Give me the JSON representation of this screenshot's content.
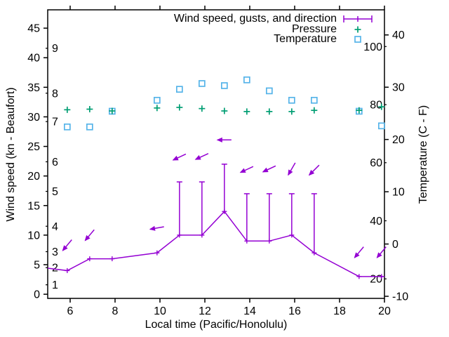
{
  "chart_data": {
    "type": "line",
    "xlabel": "Local time (Pacific/Honolulu)",
    "ylabel_left": "Wind speed (kn - Beaufort)",
    "ylabel_right": "Temperature (C - F)",
    "x_range": [
      5,
      20
    ],
    "x_ticks": [
      6,
      8,
      10,
      12,
      14,
      16,
      18,
      20
    ],
    "y_left_range": [
      -0.7,
      48.1
    ],
    "y_left_ticks": [
      0,
      5,
      10,
      15,
      20,
      25,
      30,
      35,
      40,
      45
    ],
    "beaufort_scale_labels": [
      {
        "label": "1",
        "kn": 1.6
      },
      {
        "label": "2",
        "kn": 4.5
      },
      {
        "label": "3",
        "kn": 7.2
      },
      {
        "label": "4",
        "kn": 11.5
      },
      {
        "label": "5",
        "kn": 17.4
      },
      {
        "label": "6",
        "kn": 22.4
      },
      {
        "label": "7",
        "kn": 29.2
      },
      {
        "label": "8",
        "kn": 34.0
      },
      {
        "label": "9",
        "kn": 41.6
      }
    ],
    "y_right_range_c": [
      -10.4,
      44.8
    ],
    "y_right_ticks_c": [
      -10,
      0,
      10,
      20,
      30,
      40
    ],
    "fahrenheit_scale_labels": [
      20,
      40,
      60,
      80,
      100
    ],
    "legend": [
      {
        "label": "Wind speed, gusts, and direction",
        "marker": "errorbar-line",
        "color": "#9400d3"
      },
      {
        "label": "Pressure",
        "marker": "plus",
        "color": "#009e73"
      },
      {
        "label": "Temperature",
        "marker": "open-square",
        "color": "#56b4e9"
      }
    ],
    "wind": {
      "color": "#9400d3",
      "points": [
        {
          "t": 5.0,
          "speed": 4.4,
          "edge": true
        },
        {
          "t": 5.87,
          "speed": 4,
          "arrow": {
            "y": 8.3,
            "angle": 130
          }
        },
        {
          "t": 6.87,
          "speed": 6,
          "arrow": {
            "y": 10.0,
            "angle": 130
          }
        },
        {
          "t": 7.87,
          "speed": 6
        },
        {
          "t": 9.87,
          "speed": 7,
          "arrow": {
            "y": 11.2,
            "angle": 170
          }
        },
        {
          "t": 10.87,
          "speed": 10,
          "gust": 19,
          "arrow": {
            "y": 23.2,
            "angle": 155
          }
        },
        {
          "t": 11.87,
          "speed": 10,
          "gust": 19,
          "arrow": {
            "y": 23.3,
            "angle": 155
          }
        },
        {
          "t": 12.87,
          "speed": 14,
          "gust": 22,
          "arrow": {
            "y": 26.1,
            "angle": 180
          }
        },
        {
          "t": 13.87,
          "speed": 9,
          "gust": 17,
          "arrow": {
            "y": 21.1,
            "angle": 155
          }
        },
        {
          "t": 14.87,
          "speed": 9,
          "gust": 17,
          "arrow": {
            "y": 21.2,
            "angle": 155
          }
        },
        {
          "t": 15.87,
          "speed": 10,
          "gust": 17,
          "arrow": {
            "y": 21.2,
            "angle": 120
          }
        },
        {
          "t": 16.87,
          "speed": 7,
          "gust": 17,
          "arrow": {
            "y": 21.0,
            "angle": 135
          }
        },
        {
          "t": 18.87,
          "speed": 3,
          "arrow": {
            "y": 7.1,
            "angle": 130
          }
        },
        {
          "t": 19.87,
          "speed": 3,
          "arrow": {
            "y": 7.1,
            "angle": 130
          }
        },
        {
          "t": 20.0,
          "speed": 3,
          "edge": true
        }
      ]
    },
    "pressure": {
      "color": "#009e73",
      "unit": "plotted on left-axis units",
      "points": [
        {
          "t": 5.87,
          "y": 31.2
        },
        {
          "t": 6.87,
          "y": 31.3
        },
        {
          "t": 7.87,
          "y": 31.0
        },
        {
          "t": 9.87,
          "y": 31.5
        },
        {
          "t": 10.87,
          "y": 31.6
        },
        {
          "t": 11.87,
          "y": 31.4
        },
        {
          "t": 12.87,
          "y": 31.0
        },
        {
          "t": 13.87,
          "y": 30.9
        },
        {
          "t": 14.87,
          "y": 30.9
        },
        {
          "t": 15.87,
          "y": 30.9
        },
        {
          "t": 16.87,
          "y": 31.1
        },
        {
          "t": 18.87,
          "y": 31.1
        },
        {
          "t": 19.87,
          "y": 31.7
        }
      ]
    },
    "temperature": {
      "color": "#56b4e9",
      "unit": "C",
      "points": [
        {
          "t": 5.87,
          "c": 22.4
        },
        {
          "t": 6.87,
          "c": 22.4
        },
        {
          "t": 7.87,
          "c": 25.4
        },
        {
          "t": 9.87,
          "c": 27.5
        },
        {
          "t": 10.87,
          "c": 29.6
        },
        {
          "t": 11.87,
          "c": 30.7
        },
        {
          "t": 12.87,
          "c": 30.3
        },
        {
          "t": 13.87,
          "c": 31.4
        },
        {
          "t": 14.87,
          "c": 29.3
        },
        {
          "t": 15.87,
          "c": 27.5
        },
        {
          "t": 16.87,
          "c": 27.5
        },
        {
          "t": 18.87,
          "c": 25.4
        },
        {
          "t": 19.87,
          "c": 22.6
        }
      ]
    }
  }
}
